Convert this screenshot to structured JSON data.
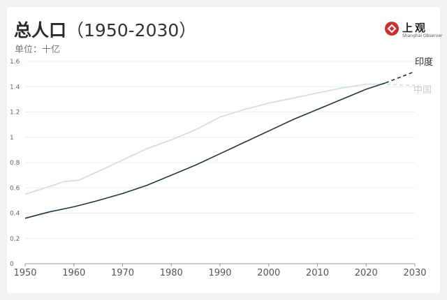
{
  "header": {
    "title": "总人口",
    "title_range": "（1950-2030）",
    "unit": "单位：十亿"
  },
  "logo": {
    "name": "上观",
    "subtitle": "Shanghai Observer",
    "icon": "shanghai-observer-logo-icon",
    "color": "#c8322e"
  },
  "chart_data": {
    "type": "line",
    "title": "总人口（1950-2030）",
    "ylabel": "单位：十亿",
    "xlim": [
      1950,
      2030
    ],
    "ylim": [
      0,
      1.6
    ],
    "x_ticks": [
      1950,
      1960,
      1970,
      1980,
      1990,
      2000,
      2010,
      2020,
      2030
    ],
    "y_ticks": [
      "0",
      "0.2",
      "0.4",
      "0.6",
      "0.8",
      "1",
      "1.2",
      "1.4",
      "1.6"
    ],
    "y_tick_values": [
      0,
      0.2,
      0.4,
      0.6,
      0.8,
      1.0,
      1.2,
      1.4,
      1.6
    ],
    "grid": "horizontal",
    "series": [
      {
        "name": "印度",
        "color": "#1f3540",
        "x": [
          1950,
          1955,
          1960,
          1965,
          1970,
          1975,
          1980,
          1985,
          1990,
          1995,
          2000,
          2005,
          2010,
          2015,
          2020,
          2024
        ],
        "y": [
          0.36,
          0.41,
          0.45,
          0.5,
          0.555,
          0.62,
          0.7,
          0.78,
          0.87,
          0.96,
          1.05,
          1.14,
          1.22,
          1.3,
          1.38,
          1.43
        ],
        "projection_x": [
          2024,
          2030
        ],
        "projection_y": [
          1.43,
          1.52
        ]
      },
      {
        "name": "中国",
        "color": "#d3e0df",
        "x": [
          1950,
          1955,
          1958,
          1961,
          1965,
          1970,
          1975,
          1980,
          1985,
          1990,
          1995,
          2000,
          2005,
          2010,
          2015,
          2020,
          2023
        ],
        "y": [
          0.55,
          0.61,
          0.65,
          0.66,
          0.73,
          0.82,
          0.91,
          0.98,
          1.06,
          1.16,
          1.22,
          1.27,
          1.31,
          1.35,
          1.39,
          1.42,
          1.42
        ],
        "projection_x": [
          2023,
          2030
        ],
        "projection_y": [
          1.42,
          1.41
        ]
      }
    ]
  }
}
